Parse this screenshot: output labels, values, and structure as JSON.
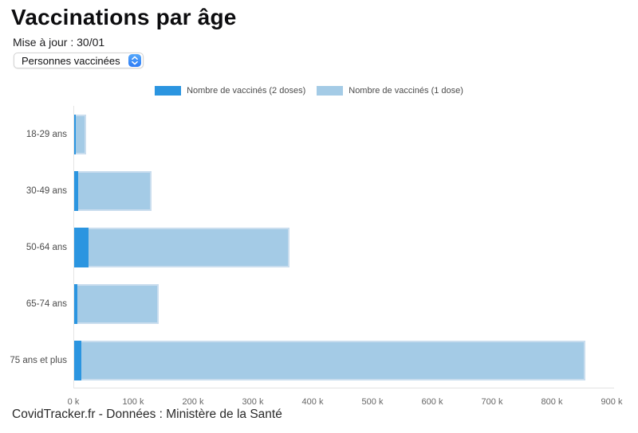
{
  "page": {
    "title": "Vaccinations par âge",
    "updated_label": "Mise à jour : 30/01",
    "footer": "CovidTracker.fr - Données : Ministère de la Santé"
  },
  "controls": {
    "metric_select": {
      "value": "Personnes vaccinées"
    }
  },
  "colors": {
    "doses2": "#2b95e0",
    "dose1": "#a4cbe6",
    "dose1_border": "#c9ddee",
    "axis_line": "#e4e4e4",
    "tick_text": "#666666",
    "category_text": "#4c4c4c",
    "legend_text": "#4c4c4c",
    "stepper_blue_top": "#55a8fa",
    "stepper_blue_bottom": "#2d7bf6"
  },
  "chart_data": {
    "type": "bar",
    "orientation": "horizontal",
    "stacked": true,
    "title": "Vaccinations par âge",
    "categories": [
      "18-29 ans",
      "30-49 ans",
      "50-64 ans",
      "65-74 ans",
      "75 ans et plus"
    ],
    "series": [
      {
        "name": "Nombre de vaccinés (2 doses)",
        "color": "#2b95e0",
        "values": [
          2000,
          7000,
          24000,
          5000,
          12000
        ]
      },
      {
        "name": "Nombre de vaccinés (1 dose)",
        "color": "#a4cbe6",
        "values": [
          18000,
          122000,
          336000,
          136000,
          843000
        ]
      }
    ],
    "totals": [
      20000,
      129000,
      360000,
      141000,
      855000
    ],
    "x_min": 0,
    "x_max": 900000,
    "x_tick_step": 100000,
    "x_ticks": [
      "0 k",
      "100 k",
      "200 k",
      "300 k",
      "400 k",
      "500 k",
      "600 k",
      "700 k",
      "800 k",
      "900 k"
    ],
    "xlabel": "",
    "ylabel": "",
    "grid": false,
    "legend_position": "top"
  }
}
